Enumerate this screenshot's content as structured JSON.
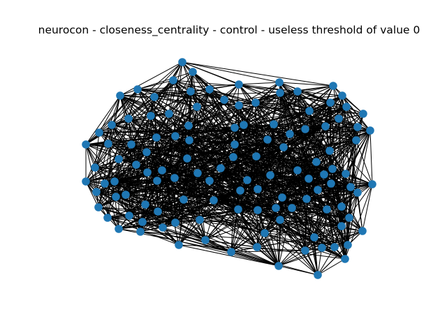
{
  "title": "neurocon - closeness_centrality - control - useless threshold of value 0",
  "colors": {
    "background": "#ffffff",
    "node_fill": "#1f77b4",
    "edge": "#000000"
  },
  "chart_data": {
    "type": "network-graph",
    "title": "neurocon - closeness_centrality - control - useless threshold of value 0",
    "node_count": 114,
    "node_color": "#1f77b4",
    "edge_color": "#000000"
  }
}
